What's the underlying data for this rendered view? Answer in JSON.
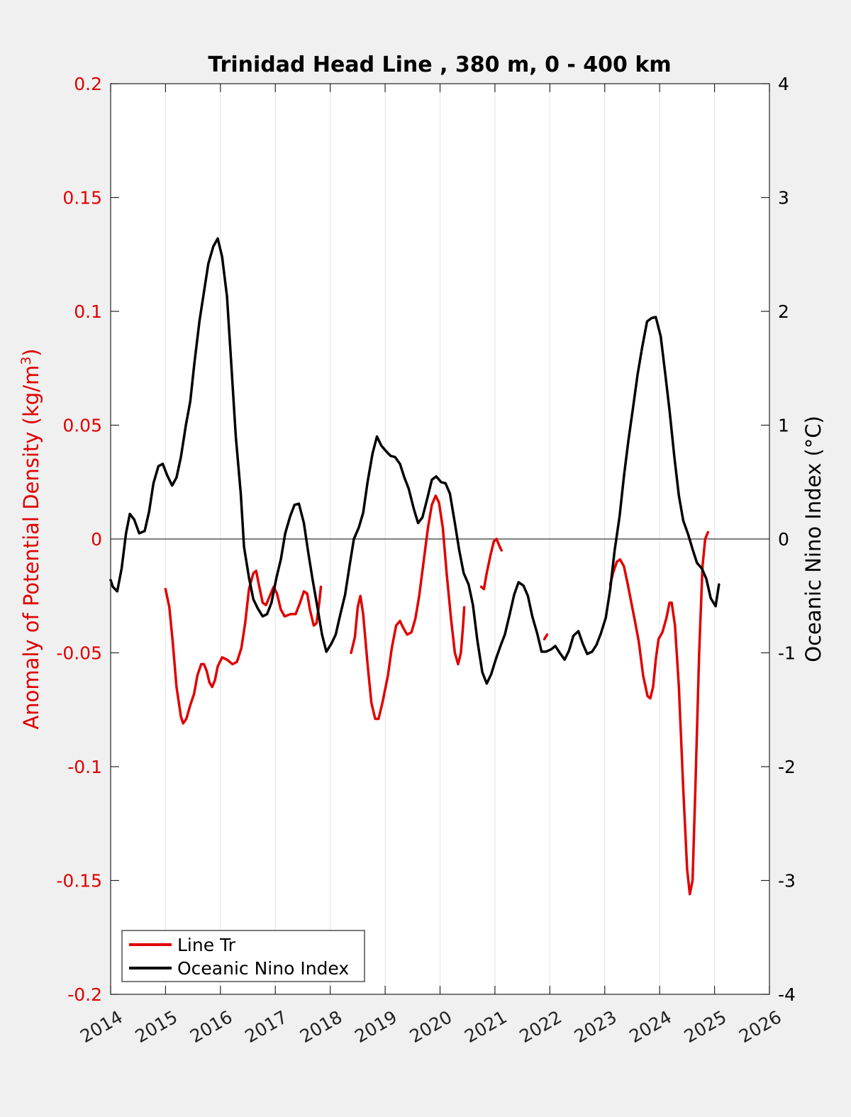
{
  "chart_data": {
    "type": "line",
    "title": "Trinidad Head Line , 380 m, 0 - 400 km",
    "ylabel_left": "Anomaly of Potential Density (kg/m",
    "ylabel_left_superscript": "3",
    "ylabel_left_close": ")",
    "ylabel_right": "Oceanic Nino Index (°C)",
    "xlim": [
      2014,
      2026
    ],
    "ylim_left": [
      -0.2,
      0.2
    ],
    "ylim_right": [
      -4,
      4
    ],
    "x_ticks": [
      "2014",
      "2015",
      "2016",
      "2017",
      "2018",
      "2019",
      "2020",
      "2021",
      "2022",
      "2023",
      "2024",
      "2025",
      "2026"
    ],
    "y_ticks_left": [
      "0.2",
      "0.15",
      "0.1",
      "0.05",
      "0",
      "-0.05",
      "-0.1",
      "-0.15",
      "-0.2"
    ],
    "y_ticks_right": [
      "4",
      "3",
      "2",
      "1",
      "0",
      "-1",
      "-2",
      "-3",
      "-4"
    ],
    "grid": "vertical",
    "legend_position": "bottom-left",
    "colors": {
      "line_tr": "#e00000",
      "oni": "#000000"
    },
    "series": [
      {
        "name": "Line Tr",
        "axis": "left",
        "segments": [
          [
            [
              2015.0,
              -0.022
            ],
            [
              2015.07,
              -0.03
            ],
            [
              2015.13,
              -0.045
            ],
            [
              2015.2,
              -0.065
            ],
            [
              2015.28,
              -0.078
            ],
            [
              2015.32,
              -0.081
            ],
            [
              2015.38,
              -0.079
            ],
            [
              2015.45,
              -0.073
            ],
            [
              2015.52,
              -0.068
            ],
            [
              2015.58,
              -0.06
            ],
            [
              2015.65,
              -0.055
            ],
            [
              2015.7,
              -0.055
            ],
            [
              2015.75,
              -0.058
            ],
            [
              2015.8,
              -0.063
            ],
            [
              2015.85,
              -0.065
            ],
            [
              2015.9,
              -0.062
            ],
            [
              2015.95,
              -0.056
            ],
            [
              2016.03,
              -0.052
            ],
            [
              2016.12,
              -0.053
            ],
            [
              2016.22,
              -0.055
            ],
            [
              2016.3,
              -0.054
            ],
            [
              2016.38,
              -0.048
            ],
            [
              2016.45,
              -0.037
            ],
            [
              2016.52,
              -0.022
            ],
            [
              2016.6,
              -0.015
            ],
            [
              2016.65,
              -0.014
            ],
            [
              2016.7,
              -0.02
            ],
            [
              2016.77,
              -0.028
            ],
            [
              2016.83,
              -0.029
            ],
            [
              2016.9,
              -0.025
            ],
            [
              2016.97,
              -0.021
            ],
            [
              2017.03,
              -0.024
            ],
            [
              2017.1,
              -0.031
            ],
            [
              2017.17,
              -0.034
            ],
            [
              2017.28,
              -0.033
            ],
            [
              2017.37,
              -0.033
            ],
            [
              2017.45,
              -0.028
            ],
            [
              2017.52,
              -0.023
            ],
            [
              2017.58,
              -0.024
            ],
            [
              2017.63,
              -0.031
            ],
            [
              2017.7,
              -0.038
            ],
            [
              2017.75,
              -0.037
            ],
            [
              2017.8,
              -0.028
            ],
            [
              2017.83,
              -0.021
            ]
          ],
          [
            [
              2018.38,
              -0.05
            ],
            [
              2018.45,
              -0.043
            ],
            [
              2018.5,
              -0.03
            ],
            [
              2018.55,
              -0.025
            ],
            [
              2018.6,
              -0.033
            ],
            [
              2018.68,
              -0.055
            ],
            [
              2018.75,
              -0.072
            ],
            [
              2018.82,
              -0.079
            ],
            [
              2018.88,
              -0.079
            ],
            [
              2018.95,
              -0.072
            ],
            [
              2019.05,
              -0.06
            ],
            [
              2019.12,
              -0.048
            ],
            [
              2019.2,
              -0.038
            ],
            [
              2019.27,
              -0.036
            ],
            [
              2019.33,
              -0.039
            ],
            [
              2019.4,
              -0.042
            ],
            [
              2019.48,
              -0.041
            ],
            [
              2019.55,
              -0.035
            ],
            [
              2019.62,
              -0.025
            ],
            [
              2019.7,
              -0.01
            ],
            [
              2019.78,
              0.005
            ],
            [
              2019.85,
              0.015
            ],
            [
              2019.92,
              0.019
            ],
            [
              2019.98,
              0.016
            ],
            [
              2020.05,
              0.005
            ],
            [
              2020.12,
              -0.015
            ],
            [
              2020.2,
              -0.035
            ],
            [
              2020.27,
              -0.05
            ],
            [
              2020.33,
              -0.055
            ],
            [
              2020.38,
              -0.05
            ],
            [
              2020.42,
              -0.038
            ],
            [
              2020.44,
              -0.03
            ]
          ],
          [
            [
              2020.75,
              -0.021
            ],
            [
              2020.8,
              -0.022
            ],
            [
              2020.85,
              -0.015
            ],
            [
              2020.92,
              -0.007
            ],
            [
              2020.98,
              -0.001
            ],
            [
              2021.03,
              0.0
            ],
            [
              2021.08,
              -0.003
            ],
            [
              2021.12,
              -0.005
            ]
          ],
          [
            [
              2021.9,
              -0.044
            ],
            [
              2021.95,
              -0.042
            ]
          ],
          [
            [
              2023.1,
              -0.02
            ],
            [
              2023.15,
              -0.015
            ],
            [
              2023.22,
              -0.01
            ],
            [
              2023.28,
              -0.009
            ],
            [
              2023.35,
              -0.012
            ],
            [
              2023.42,
              -0.02
            ],
            [
              2023.5,
              -0.03
            ],
            [
              2023.55,
              -0.036
            ],
            [
              2023.62,
              -0.045
            ],
            [
              2023.7,
              -0.06
            ],
            [
              2023.78,
              -0.069
            ],
            [
              2023.83,
              -0.07
            ],
            [
              2023.88,
              -0.065
            ],
            [
              2023.93,
              -0.053
            ],
            [
              2023.98,
              -0.044
            ],
            [
              2024.05,
              -0.041
            ],
            [
              2024.12,
              -0.035
            ],
            [
              2024.18,
              -0.028
            ],
            [
              2024.22,
              -0.028
            ],
            [
              2024.28,
              -0.038
            ],
            [
              2024.35,
              -0.065
            ],
            [
              2024.43,
              -0.11
            ],
            [
              2024.5,
              -0.145
            ],
            [
              2024.55,
              -0.156
            ],
            [
              2024.6,
              -0.15
            ],
            [
              2024.65,
              -0.11
            ],
            [
              2024.72,
              -0.05
            ],
            [
              2024.78,
              -0.012
            ],
            [
              2024.83,
              0.0
            ],
            [
              2024.88,
              0.003
            ]
          ]
        ]
      },
      {
        "name": "Oceanic Nino Index",
        "axis": "right",
        "segments": [
          [
            [
              2014.0,
              -0.36
            ],
            [
              2014.04,
              -0.42
            ],
            [
              2014.12,
              -0.46
            ],
            [
              2014.2,
              -0.26
            ],
            [
              2014.28,
              0.05
            ],
            [
              2014.35,
              0.22
            ],
            [
              2014.43,
              0.17
            ],
            [
              2014.52,
              0.05
            ],
            [
              2014.62,
              0.07
            ],
            [
              2014.7,
              0.24
            ],
            [
              2014.78,
              0.49
            ],
            [
              2014.87,
              0.64
            ],
            [
              2014.95,
              0.66
            ],
            [
              2015.03,
              0.56
            ],
            [
              2015.12,
              0.47
            ],
            [
              2015.2,
              0.54
            ],
            [
              2015.28,
              0.72
            ],
            [
              2015.37,
              1.0
            ],
            [
              2015.45,
              1.21
            ],
            [
              2015.53,
              1.56
            ],
            [
              2015.62,
              1.92
            ],
            [
              2015.7,
              2.17
            ],
            [
              2015.78,
              2.42
            ],
            [
              2015.87,
              2.57
            ],
            [
              2015.95,
              2.64
            ],
            [
              2016.03,
              2.48
            ],
            [
              2016.12,
              2.13
            ],
            [
              2016.2,
              1.52
            ],
            [
              2016.28,
              0.9
            ],
            [
              2016.37,
              0.4
            ],
            [
              2016.43,
              -0.07
            ],
            [
              2016.52,
              -0.34
            ],
            [
              2016.6,
              -0.53
            ],
            [
              2016.68,
              -0.61
            ],
            [
              2016.77,
              -0.68
            ],
            [
              2016.85,
              -0.66
            ],
            [
              2016.93,
              -0.56
            ],
            [
              2017.02,
              -0.34
            ],
            [
              2017.1,
              -0.18
            ],
            [
              2017.18,
              0.05
            ],
            [
              2017.27,
              0.2
            ],
            [
              2017.35,
              0.3
            ],
            [
              2017.43,
              0.31
            ],
            [
              2017.52,
              0.14
            ],
            [
              2017.6,
              -0.12
            ],
            [
              2017.68,
              -0.36
            ],
            [
              2017.77,
              -0.61
            ],
            [
              2017.85,
              -0.84
            ],
            [
              2017.93,
              -0.99
            ],
            [
              2018.02,
              -0.92
            ],
            [
              2018.1,
              -0.84
            ],
            [
              2018.18,
              -0.67
            ],
            [
              2018.27,
              -0.49
            ],
            [
              2018.35,
              -0.24
            ],
            [
              2018.43,
              0.0
            ],
            [
              2018.52,
              0.1
            ],
            [
              2018.6,
              0.23
            ],
            [
              2018.68,
              0.5
            ],
            [
              2018.77,
              0.75
            ],
            [
              2018.85,
              0.9
            ],
            [
              2018.93,
              0.82
            ],
            [
              2019.02,
              0.77
            ],
            [
              2019.1,
              0.73
            ],
            [
              2019.18,
              0.72
            ],
            [
              2019.27,
              0.66
            ],
            [
              2019.35,
              0.54
            ],
            [
              2019.43,
              0.44
            ],
            [
              2019.52,
              0.27
            ],
            [
              2019.6,
              0.14
            ],
            [
              2019.68,
              0.19
            ],
            [
              2019.77,
              0.36
            ],
            [
              2019.85,
              0.52
            ],
            [
              2019.93,
              0.55
            ],
            [
              2020.02,
              0.5
            ],
            [
              2020.1,
              0.49
            ],
            [
              2020.18,
              0.4
            ],
            [
              2020.27,
              0.14
            ],
            [
              2020.35,
              -0.1
            ],
            [
              2020.43,
              -0.3
            ],
            [
              2020.52,
              -0.4
            ],
            [
              2020.6,
              -0.58
            ],
            [
              2020.68,
              -0.89
            ],
            [
              2020.77,
              -1.17
            ],
            [
              2020.85,
              -1.27
            ],
            [
              2020.93,
              -1.19
            ],
            [
              2021.02,
              -1.05
            ],
            [
              2021.1,
              -0.94
            ],
            [
              2021.18,
              -0.84
            ],
            [
              2021.27,
              -0.66
            ],
            [
              2021.35,
              -0.49
            ],
            [
              2021.43,
              -0.38
            ],
            [
              2021.52,
              -0.41
            ],
            [
              2021.6,
              -0.5
            ],
            [
              2021.68,
              -0.68
            ],
            [
              2021.77,
              -0.83
            ],
            [
              2021.85,
              -0.99
            ],
            [
              2021.93,
              -0.99
            ],
            [
              2022.02,
              -0.97
            ],
            [
              2022.1,
              -0.94
            ],
            [
              2022.18,
              -1.0
            ],
            [
              2022.27,
              -1.06
            ],
            [
              2022.35,
              -0.98
            ],
            [
              2022.43,
              -0.85
            ],
            [
              2022.52,
              -0.81
            ],
            [
              2022.6,
              -0.92
            ],
            [
              2022.68,
              -1.01
            ],
            [
              2022.77,
              -0.99
            ],
            [
              2022.85,
              -0.93
            ],
            [
              2022.93,
              -0.83
            ],
            [
              2023.02,
              -0.69
            ],
            [
              2023.1,
              -0.44
            ],
            [
              2023.18,
              -0.1
            ],
            [
              2023.27,
              0.2
            ],
            [
              2023.35,
              0.55
            ],
            [
              2023.43,
              0.86
            ],
            [
              2023.52,
              1.17
            ],
            [
              2023.6,
              1.45
            ],
            [
              2023.68,
              1.68
            ],
            [
              2023.77,
              1.91
            ],
            [
              2023.85,
              1.94
            ],
            [
              2023.93,
              1.95
            ],
            [
              2024.02,
              1.78
            ],
            [
              2024.1,
              1.46
            ],
            [
              2024.18,
              1.13
            ],
            [
              2024.27,
              0.71
            ],
            [
              2024.35,
              0.38
            ],
            [
              2024.43,
              0.16
            ],
            [
              2024.52,
              0.04
            ],
            [
              2024.6,
              -0.09
            ],
            [
              2024.68,
              -0.21
            ],
            [
              2024.77,
              -0.26
            ],
            [
              2024.85,
              -0.35
            ],
            [
              2024.93,
              -0.52
            ],
            [
              2025.02,
              -0.59
            ],
            [
              2025.08,
              -0.4
            ]
          ]
        ]
      }
    ]
  }
}
